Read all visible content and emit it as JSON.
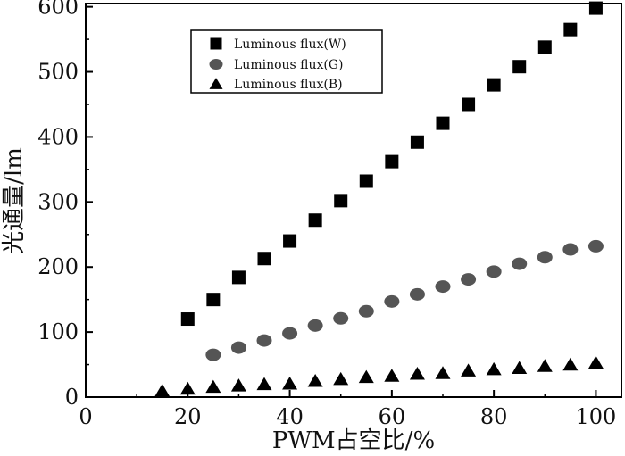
{
  "chart_data": {
    "type": "scatter",
    "title": "",
    "xlabel": "PWM占空比/%",
    "ylabel": "光通量/lm",
    "xlim": [
      0,
      105
    ],
    "ylim": [
      0,
      605
    ],
    "x_ticks": [
      0,
      20,
      40,
      60,
      80,
      100
    ],
    "y_ticks": [
      0,
      100,
      200,
      300,
      400,
      500,
      600
    ],
    "x_tick_labels": [
      "0",
      "20",
      "40",
      "60",
      "80",
      "100"
    ],
    "y_tick_labels": [
      "0",
      "100",
      "200",
      "300",
      "400",
      "500",
      "600"
    ],
    "grid": false,
    "legend_position": "top-left",
    "series": [
      {
        "name": "Luminous flux(W)",
        "marker": "square",
        "color": "#000000",
        "x": [
          20,
          25,
          30,
          35,
          40,
          45,
          50,
          55,
          60,
          65,
          70,
          75,
          80,
          85,
          90,
          95,
          100
        ],
        "y": [
          120,
          150,
          184,
          213,
          240,
          272,
          302,
          332,
          362,
          392,
          421,
          450,
          480,
          508,
          538,
          565,
          598
        ]
      },
      {
        "name": "Luminous flux(G)",
        "marker": "circle",
        "color": "#555555",
        "x": [
          25,
          30,
          35,
          40,
          45,
          50,
          55,
          60,
          65,
          70,
          75,
          80,
          85,
          90,
          95,
          100
        ],
        "y": [
          65,
          76,
          87,
          98,
          110,
          121,
          132,
          147,
          158,
          170,
          181,
          193,
          205,
          215,
          227,
          232
        ]
      },
      {
        "name": "Luminous flux(B)",
        "marker": "triangle",
        "color": "#000000",
        "x": [
          15,
          20,
          25,
          30,
          35,
          40,
          45,
          50,
          55,
          60,
          65,
          70,
          75,
          80,
          85,
          90,
          95,
          100
        ],
        "y": [
          10,
          13,
          16,
          18,
          20,
          21,
          25,
          28,
          31,
          33,
          36,
          37,
          41,
          43,
          45,
          48,
          50,
          53
        ]
      }
    ]
  }
}
